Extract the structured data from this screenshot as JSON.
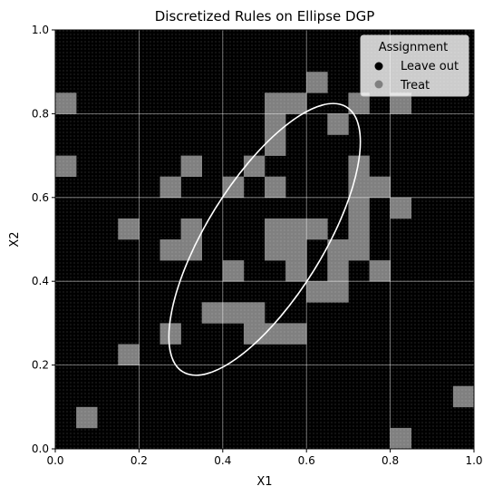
{
  "chart_data": {
    "type": "heatmap",
    "title": "Discretized Rules on Ellipse DGP",
    "xlabel": "X1",
    "ylabel": "X2",
    "xlim": [
      0,
      1
    ],
    "ylim": [
      0,
      1
    ],
    "xticks": [
      "0.0",
      "0.2",
      "0.4",
      "0.6",
      "0.8",
      "1.0"
    ],
    "yticks": [
      "0.0",
      "0.2",
      "0.4",
      "0.6",
      "0.8",
      "1.0"
    ],
    "grid": true,
    "grid_bins": 20,
    "legend": {
      "title": "Assignment",
      "placement": "top-right",
      "entries": [
        {
          "label": "Leave out",
          "color": "#000000"
        },
        {
          "label": "Treat",
          "color": "#808080"
        }
      ]
    },
    "background_assignment": "Leave out",
    "treat_cells": [
      [
        0.0,
        0.8
      ],
      [
        0.0,
        0.65
      ],
      [
        0.05,
        0.05
      ],
      [
        0.15,
        0.2
      ],
      [
        0.15,
        0.5
      ],
      [
        0.25,
        0.6
      ],
      [
        0.25,
        0.45
      ],
      [
        0.25,
        0.25
      ],
      [
        0.3,
        0.65
      ],
      [
        0.3,
        0.5
      ],
      [
        0.3,
        0.45
      ],
      [
        0.35,
        0.3
      ],
      [
        0.4,
        0.6
      ],
      [
        0.4,
        0.4
      ],
      [
        0.4,
        0.3
      ],
      [
        0.45,
        0.65
      ],
      [
        0.45,
        0.3
      ],
      [
        0.45,
        0.25
      ],
      [
        0.5,
        0.8
      ],
      [
        0.5,
        0.75
      ],
      [
        0.5,
        0.7
      ],
      [
        0.5,
        0.6
      ],
      [
        0.5,
        0.5
      ],
      [
        0.5,
        0.45
      ],
      [
        0.5,
        0.25
      ],
      [
        0.55,
        0.8
      ],
      [
        0.55,
        0.5
      ],
      [
        0.55,
        0.45
      ],
      [
        0.55,
        0.4
      ],
      [
        0.55,
        0.25
      ],
      [
        0.6,
        0.85
      ],
      [
        0.6,
        0.5
      ],
      [
        0.6,
        0.35
      ],
      [
        0.65,
        0.75
      ],
      [
        0.65,
        0.45
      ],
      [
        0.65,
        0.4
      ],
      [
        0.65,
        0.35
      ],
      [
        0.7,
        0.8
      ],
      [
        0.7,
        0.65
      ],
      [
        0.7,
        0.6
      ],
      [
        0.7,
        0.55
      ],
      [
        0.7,
        0.5
      ],
      [
        0.7,
        0.45
      ],
      [
        0.75,
        0.6
      ],
      [
        0.75,
        0.4
      ],
      [
        0.8,
        0.8
      ],
      [
        0.8,
        0.55
      ],
      [
        0.8,
        0.0
      ],
      [
        0.95,
        0.1
      ]
    ],
    "ellipse": {
      "center": [
        0.5,
        0.5
      ],
      "axis_endpoints": [
        [
          0.3043,
          0.184
        ],
        [
          0.6957,
          0.816
        ]
      ],
      "minor_semi_axis": 0.139,
      "color": "#ffffff"
    }
  }
}
